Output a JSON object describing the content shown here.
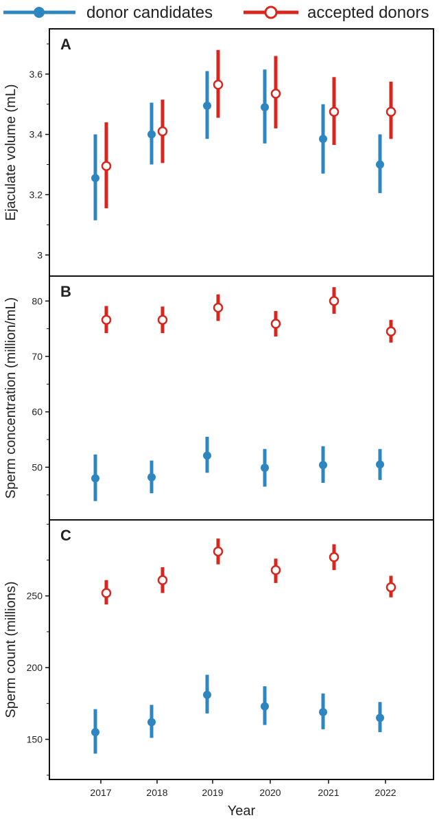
{
  "legend": {
    "candidates_label": "donor candidates",
    "accepted_label": "accepted donors"
  },
  "colors": {
    "candidates": "#2e86c1",
    "accepted": "#d7261e",
    "frame": "#111111"
  },
  "chart_data": [
    {
      "type": "errorbar",
      "panel": "A",
      "ylabel": "Ejaculate volume (mL)",
      "ylim": [
        2.93,
        3.75
      ],
      "yticks": [
        3.0,
        3.2,
        3.4,
        3.6
      ],
      "x": [
        2017,
        2018,
        2019,
        2020,
        2021,
        2022
      ],
      "series": [
        {
          "name": "donor candidates",
          "values": [
            3.255,
            3.4,
            3.495,
            3.49,
            3.385,
            3.3
          ],
          "lower": [
            3.115,
            3.3,
            3.385,
            3.37,
            3.27,
            3.205
          ],
          "upper": [
            3.4,
            3.505,
            3.61,
            3.615,
            3.5,
            3.4
          ]
        },
        {
          "name": "accepted donors",
          "values": [
            3.295,
            3.41,
            3.565,
            3.535,
            3.475,
            3.475
          ],
          "lower": [
            3.155,
            3.305,
            3.455,
            3.42,
            3.365,
            3.385
          ],
          "upper": [
            3.44,
            3.515,
            3.68,
            3.66,
            3.59,
            3.575
          ]
        }
      ]
    },
    {
      "type": "errorbar",
      "panel": "B",
      "ylabel": "Sperm concentration (million/mL)",
      "ylim": [
        40.5,
        84.5
      ],
      "yticks": [
        50,
        60,
        70,
        80
      ],
      "x": [
        2017,
        2018,
        2019,
        2020,
        2021,
        2022
      ],
      "series": [
        {
          "name": "donor candidates",
          "values": [
            48.0,
            48.2,
            52.1,
            49.9,
            50.4,
            50.5
          ],
          "lower": [
            43.9,
            45.3,
            49.0,
            46.5,
            47.2,
            47.7
          ],
          "upper": [
            52.3,
            51.2,
            55.5,
            53.3,
            53.8,
            53.3
          ]
        },
        {
          "name": "accepted donors",
          "values": [
            76.6,
            76.6,
            78.8,
            75.9,
            80.0,
            74.5
          ],
          "lower": [
            74.2,
            74.2,
            76.4,
            73.6,
            77.7,
            72.5
          ],
          "upper": [
            79.1,
            79.0,
            81.2,
            78.2,
            82.5,
            76.6
          ]
        }
      ]
    },
    {
      "type": "errorbar",
      "panel": "C",
      "ylabel": "Sperm count (millions)",
      "ylim": [
        122,
        303
      ],
      "yticks": [
        150,
        200,
        250
      ],
      "x": [
        2017,
        2018,
        2019,
        2020,
        2021,
        2022
      ],
      "xlabel": "Year",
      "series": [
        {
          "name": "donor candidates",
          "values": [
            155,
            162,
            181,
            173,
            169,
            165
          ],
          "lower": [
            140,
            151,
            168,
            160,
            157,
            155
          ],
          "upper": [
            171,
            174,
            195,
            187,
            182,
            176
          ]
        },
        {
          "name": "accepted donors",
          "values": [
            252,
            261,
            281,
            268,
            277,
            256
          ],
          "lower": [
            244,
            252,
            272,
            259,
            268,
            249
          ],
          "upper": [
            261,
            270,
            290,
            276,
            286,
            264
          ]
        }
      ]
    }
  ]
}
